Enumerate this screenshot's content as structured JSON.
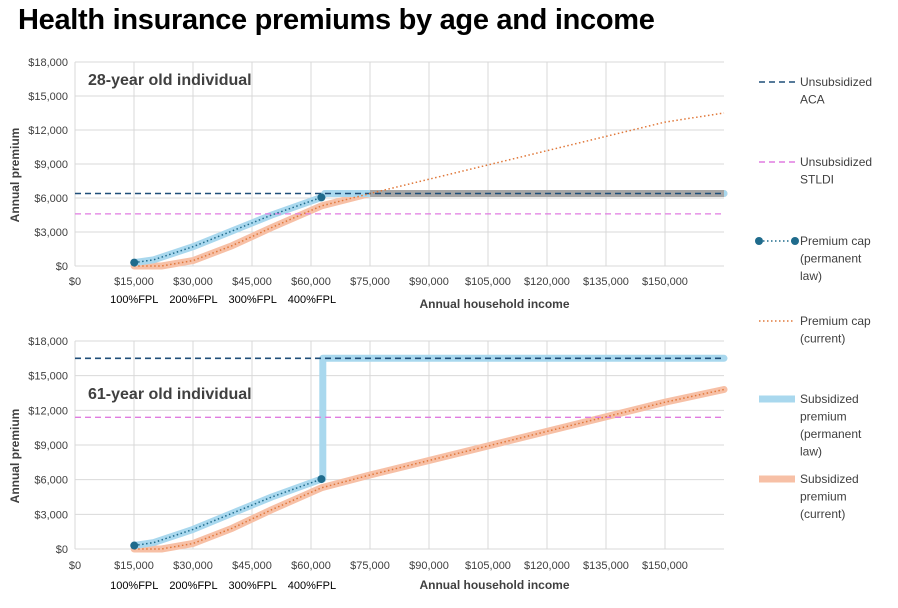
{
  "title": "Health insurance premiums by age and income",
  "legend": [
    {
      "key": "aca",
      "lines": [
        "Unsubsidized",
        "ACA"
      ],
      "color": "#1F4E79",
      "style": "dashed"
    },
    {
      "key": "stldi",
      "lines": [
        "Unsubsidized",
        "STLDI"
      ],
      "color": "#E07BE0",
      "style": "dashed"
    },
    {
      "key": "cap_perm",
      "lines": [
        "Premium cap",
        "(permanent",
        "law)"
      ],
      "color": "#1F6B8C",
      "style": "dotted-markers"
    },
    {
      "key": "cap_curr",
      "lines": [
        "Premium cap",
        "(current)"
      ],
      "color": "#E0783A",
      "style": "dotted"
    },
    {
      "key": "sub_perm",
      "lines": [
        "Subsidized",
        "premium",
        "(permanent",
        "law)"
      ],
      "color": "#A9D8EE",
      "style": "thick"
    },
    {
      "key": "sub_curr",
      "lines": [
        "Subsidized",
        "premium",
        "(current)"
      ],
      "color": "#F7C0A6",
      "style": "thick"
    }
  ],
  "chart_data": [
    {
      "type": "line",
      "panel_label": "28-year old individual",
      "xlabel": "Annual household income",
      "ylabel": "Annual premium",
      "xlim": [
        0,
        165000
      ],
      "ylim": [
        0,
        18000
      ],
      "x_ticks": [
        "$0",
        "$15,000",
        "$30,000",
        "$45,000",
        "$60,000",
        "$75,000",
        "$90,000",
        "$105,000",
        "$120,000",
        "$135,000",
        "$150,000"
      ],
      "y_ticks": [
        "$0",
        "$3,000",
        "$6,000",
        "$9,000",
        "$12,000",
        "$15,000",
        "$18,000"
      ],
      "fpl_labels": [
        "100%FPL",
        "200%FPL",
        "300%FPL",
        "400%FPL"
      ],
      "grid": true,
      "series": {
        "aca": {
          "x": [
            0,
            165000
          ],
          "y": [
            6400,
            6400
          ]
        },
        "stldi": {
          "x": [
            0,
            165000
          ],
          "y": [
            4600,
            4600
          ]
        },
        "cap_perm": {
          "x": [
            15060,
            20000,
            30000,
            40000,
            50000,
            62640
          ],
          "y": [
            300,
            550,
            1700,
            3100,
            4500,
            6050
          ]
        },
        "cap_curr": {
          "x": [
            15060,
            22000,
            30000,
            40000,
            50000,
            62640,
            75000,
            100000,
            125000,
            150000,
            165000
          ],
          "y": [
            0,
            0,
            480,
            1800,
            3400,
            5300,
            6400,
            8500,
            10600,
            12700,
            13500
          ]
        },
        "sub_perm": {
          "x": [
            15060,
            20000,
            30000,
            40000,
            50000,
            62640,
            63500,
            165000
          ],
          "y": [
            300,
            550,
            1700,
            3100,
            4500,
            6050,
            6400,
            6400
          ]
        },
        "sub_curr": {
          "x": [
            15060,
            22000,
            30000,
            40000,
            50000,
            62640,
            75000,
            165000
          ],
          "y": [
            0,
            0,
            480,
            1800,
            3400,
            5300,
            6400,
            6400
          ]
        }
      }
    },
    {
      "type": "line",
      "panel_label": "61-year old individual",
      "xlabel": "Annual household income",
      "ylabel": "Annual premium",
      "xlim": [
        0,
        165000
      ],
      "ylim": [
        0,
        18000
      ],
      "x_ticks": [
        "$0",
        "$15,000",
        "$30,000",
        "$45,000",
        "$60,000",
        "$75,000",
        "$90,000",
        "$105,000",
        "$120,000",
        "$135,000",
        "$150,000"
      ],
      "y_ticks": [
        "$0",
        "$3,000",
        "$6,000",
        "$9,000",
        "$12,000",
        "$15,000",
        "$18,000"
      ],
      "fpl_labels": [
        "100%FPL",
        "200%FPL",
        "300%FPL",
        "400%FPL"
      ],
      "grid": true,
      "series": {
        "aca": {
          "x": [
            0,
            165000
          ],
          "y": [
            16500,
            16500
          ]
        },
        "stldi": {
          "x": [
            0,
            165000
          ],
          "y": [
            11400,
            11400
          ]
        },
        "cap_perm": {
          "x": [
            15060,
            20000,
            30000,
            40000,
            50000,
            62640
          ],
          "y": [
            300,
            550,
            1700,
            3100,
            4500,
            6050
          ]
        },
        "cap_curr": {
          "x": [
            15060,
            22000,
            30000,
            40000,
            50000,
            62640,
            75000,
            100000,
            125000,
            150000,
            165000
          ],
          "y": [
            0,
            0,
            480,
            1800,
            3400,
            5300,
            6400,
            8500,
            10600,
            12700,
            13800
          ]
        },
        "sub_perm": {
          "x": [
            15060,
            20000,
            30000,
            40000,
            50000,
            62640,
            63000,
            63000,
            165000
          ],
          "y": [
            300,
            550,
            1700,
            3100,
            4500,
            6050,
            6050,
            16500,
            16500
          ]
        },
        "sub_curr": {
          "x": [
            15060,
            22000,
            30000,
            40000,
            50000,
            62640,
            75000,
            100000,
            125000,
            150000,
            165000
          ],
          "y": [
            0,
            0,
            480,
            1800,
            3400,
            5300,
            6400,
            8500,
            10600,
            12700,
            13800
          ]
        }
      }
    }
  ]
}
